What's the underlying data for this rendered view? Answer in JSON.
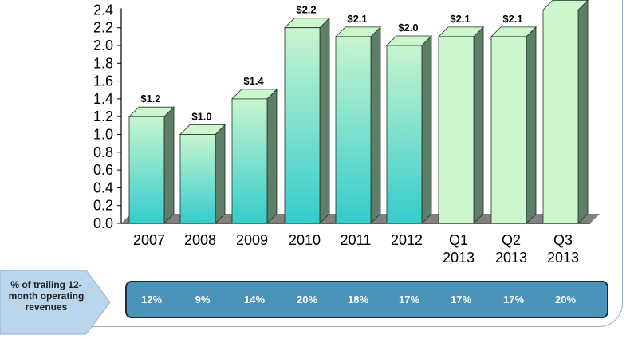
{
  "chart_data": {
    "type": "bar",
    "categories": [
      "2007",
      "2008",
      "2009",
      "2010",
      "2011",
      "2012",
      "Q1\n2013",
      "Q2\n2013",
      "Q3\n2013"
    ],
    "values": [
      1.2,
      1.0,
      1.4,
      2.2,
      2.1,
      2.0,
      2.1,
      2.1,
      2.4
    ],
    "data_labels": [
      "$1.2",
      "$1.0",
      "$1.4",
      "$2.2",
      "$2.1",
      "$2.0",
      "$2.1",
      "$2.1",
      ""
    ],
    "y_ticks": [
      "0.0",
      "0.2",
      "0.4",
      "0.6",
      "0.8",
      "1.0",
      "1.2",
      "1.4",
      "1.6",
      "1.8",
      "2.0",
      "2.2",
      "2.4"
    ],
    "ylim": [
      0,
      2.4
    ],
    "style": "3d-bar",
    "legend": "none",
    "grid": false,
    "colors": {
      "annual_bar_top": "#c8f5cf",
      "annual_bar_bottom": "#35cccc",
      "quarter_bar": "#ccf7cc",
      "bar_side": "#5e7e68",
      "floor": "#808080"
    }
  },
  "percent_row": {
    "label": "% of trailing 12-month operating revenues",
    "values": [
      "12%",
      "9%",
      "14%",
      "20%",
      "18%",
      "17%",
      "17%",
      "17%",
      "20%"
    ],
    "colors": {
      "bar": "#4a93b8",
      "label_arrow": "#b9d6ed"
    }
  }
}
